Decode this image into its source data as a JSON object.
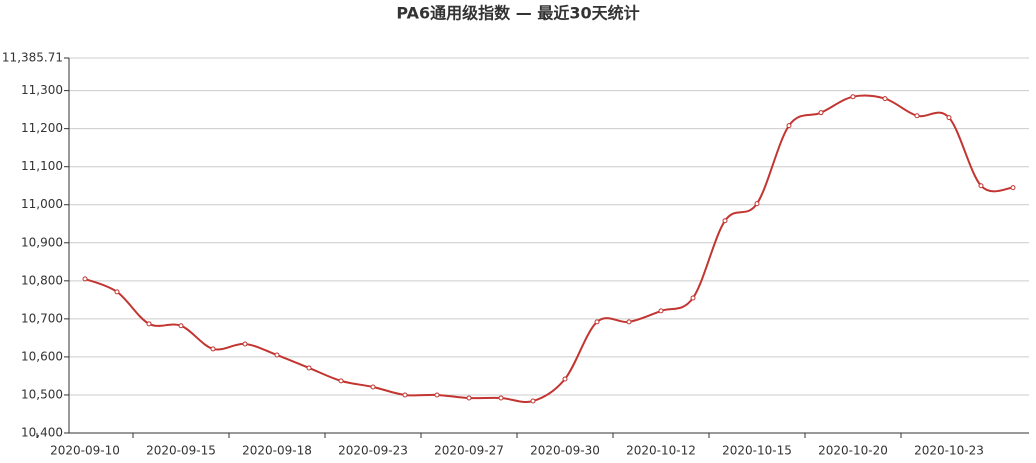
{
  "chart_data": {
    "type": "line",
    "title": "PA6通用级指数 — 最近30天统计",
    "categories": [
      "2020-09-10",
      null,
      null,
      "2020-09-15",
      null,
      null,
      "2020-09-18",
      null,
      null,
      "2020-09-23",
      null,
      null,
      "2020-09-27",
      null,
      null,
      "2020-09-30",
      null,
      null,
      "2020-10-12",
      null,
      null,
      "2020-10-15",
      null,
      null,
      "2020-10-20",
      null,
      null,
      "2020-10-23",
      null,
      null
    ],
    "series": [
      {
        "color": "#c23531",
        "values": [
          10805,
          10771,
          10687,
          10682,
          10621,
          10634,
          10605,
          10571,
          10537,
          10521,
          10500,
          10500,
          10492,
          10492,
          10484,
          10542,
          10692,
          10692,
          10721,
          10755,
          10958,
          11003,
          11208,
          11242,
          11284,
          11279,
          11234,
          11229,
          11050,
          11045
        ]
      }
    ],
    "ylim": [
      10400,
      11385.71
    ],
    "yticks": [
      {
        "value": 10400,
        "label": "10,400"
      },
      {
        "value": 10500,
        "label": "10,500"
      },
      {
        "value": 10600,
        "label": "10,600"
      },
      {
        "value": 10700,
        "label": "10,700"
      },
      {
        "value": 10800,
        "label": "10,800"
      },
      {
        "value": 10900,
        "label": "10,900"
      },
      {
        "value": 11000,
        "label": "11,000"
      },
      {
        "value": 11100,
        "label": "11,100"
      },
      {
        "value": 11200,
        "label": "11,200"
      },
      {
        "value": 11300,
        "label": "11,300"
      },
      {
        "value": 11385.71,
        "label": "11,385.71"
      }
    ],
    "grid": true,
    "smooth": true
  }
}
